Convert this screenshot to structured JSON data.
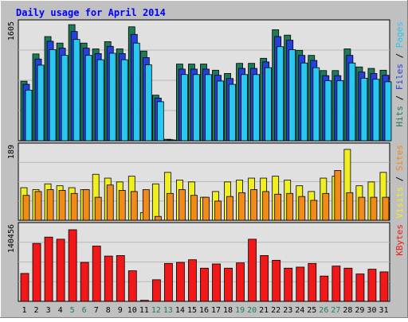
{
  "chart_data": {
    "type": "bar",
    "title": "Daily usage for April 2014",
    "categories": [
      "1",
      "2",
      "3",
      "4",
      "5",
      "6",
      "7",
      "8",
      "9",
      "10",
      "11",
      "12",
      "13",
      "14",
      "15",
      "16",
      "17",
      "18",
      "19",
      "20",
      "21",
      "22",
      "23",
      "24",
      "25",
      "26",
      "27",
      "28",
      "29",
      "30",
      "31"
    ],
    "weekend_days": [
      5,
      6,
      12,
      13,
      19,
      20,
      26,
      27
    ],
    "panels": [
      {
        "id": "hits-files-pages",
        "ymax_label": "1605",
        "ymax": 1605,
        "series": [
          {
            "name": "Hits",
            "color": "#1e7b5a",
            "values": [
              823,
              1200,
              1440,
              1350,
              1605,
              1350,
              1270,
              1370,
              1270,
              1575,
              1240,
              630,
              20,
              1060,
              1060,
              1060,
              975,
              930,
              1070,
              1070,
              1140,
              1535,
              1460,
              1250,
              1180,
              970,
              970,
              1270,
              1020,
              1000,
              975
            ]
          },
          {
            "name": "Files",
            "color": "#2640e0",
            "values": [
              780,
              1130,
              1375,
              1280,
              1510,
              1280,
              1205,
              1305,
              1205,
              1470,
              1150,
              590,
              15,
              990,
              990,
              990,
              905,
              860,
              1000,
              1000,
              1090,
              1440,
              1390,
              1180,
              1110,
              900,
              900,
              1180,
              950,
              930,
              905
            ]
          },
          {
            "name": "Pages",
            "color": "#29c8f0",
            "values": [
              700,
              1045,
              1260,
              1180,
              1400,
              1180,
              1120,
              1210,
              1120,
              1350,
              1050,
              540,
              10,
              915,
              915,
              915,
              825,
              780,
              915,
              915,
              1010,
              1300,
              1260,
              1075,
              1010,
              830,
              830,
              1075,
              865,
              850,
              815
            ]
          }
        ]
      },
      {
        "id": "visits-sites",
        "ymax_label": "189",
        "ymax": 189,
        "series": [
          {
            "name": "Visits",
            "color": "#f0f020",
            "values": [
              85,
              80,
              95,
              90,
              85,
              80,
              120,
              110,
              100,
              115,
              20,
              95,
              125,
              105,
              100,
              60,
              75,
              100,
              105,
              110,
              110,
              115,
              105,
              90,
              75,
              110,
              115,
              185,
              90,
              100,
              125
            ]
          },
          {
            "name": "Sites",
            "color": "#f08a18",
            "values": [
              65,
              75,
              80,
              78,
              70,
              80,
              60,
              92,
              78,
              75,
              80,
              10,
              70,
              80,
              65,
              60,
              50,
              62,
              72,
              80,
              75,
              68,
              70,
              62,
              52,
              70,
              130,
              72,
              60,
              60,
              60
            ]
          }
        ]
      },
      {
        "id": "kbytes",
        "ymax_label": "140456",
        "ymax": 140456,
        "series": [
          {
            "name": "KBytes",
            "color": "#f01818",
            "values": [
              53000,
              110000,
              122000,
              118000,
              136000,
              74000,
              105000,
              86000,
              87000,
              58000,
              2000,
              41000,
              72000,
              74000,
              79000,
              63000,
              71000,
              63000,
              73000,
              118000,
              87000,
              78000,
              63000,
              65000,
              72000,
              48000,
              67000,
              63000,
              52000,
              61000,
              56000
            ]
          }
        ]
      }
    ]
  },
  "colors": {
    "frame": "#c0c0c0",
    "panel_bg": "#e0e0e0",
    "title": "#0000ff",
    "weekend_tick": "#1e7b5a",
    "weekday_tick": "#000000"
  }
}
